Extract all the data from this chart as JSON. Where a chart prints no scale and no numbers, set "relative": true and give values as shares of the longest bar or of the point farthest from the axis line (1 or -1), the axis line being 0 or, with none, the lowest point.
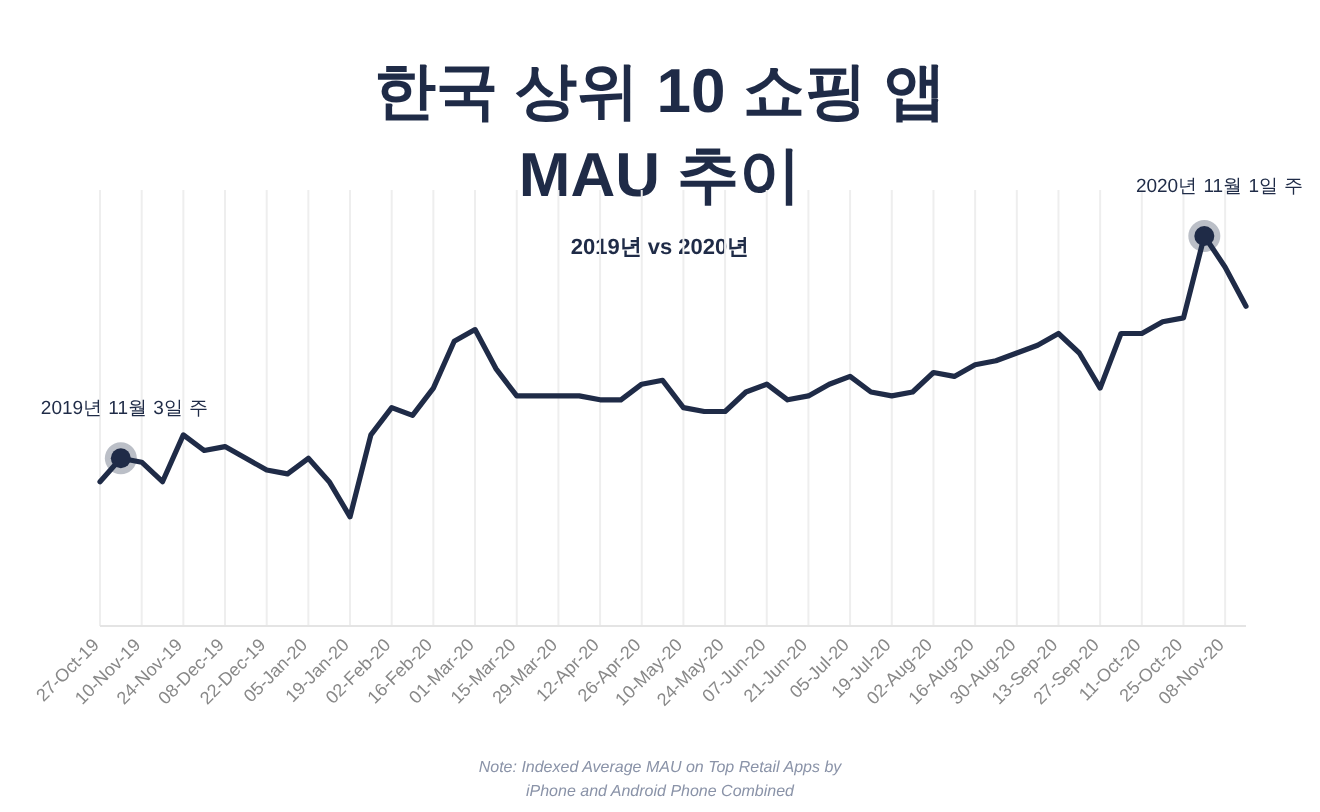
{
  "chart_data": {
    "type": "line",
    "relative": true,
    "title": "한국 상위 10 쇼핑 앱\nMAU 추이",
    "subtitle": "2019년 vs 2020년",
    "grid": "x",
    "marker": "none",
    "line_style": "solid",
    "xlim": [
      "2019-10-27",
      "2020-11-15"
    ],
    "xticks": [
      {
        "value": "2019-10-27",
        "label": "27-Oct-19"
      },
      {
        "value": "2019-11-10",
        "label": "10-Nov-19"
      },
      {
        "value": "2019-11-24",
        "label": "24-Nov-19"
      },
      {
        "value": "2019-12-08",
        "label": "08-Dec-19"
      },
      {
        "value": "2019-12-22",
        "label": "22-Dec-19"
      },
      {
        "value": "2020-01-05",
        "label": "05-Jan-20"
      },
      {
        "value": "2020-01-19",
        "label": "19-Jan-20"
      },
      {
        "value": "2020-02-02",
        "label": "02-Feb-20"
      },
      {
        "value": "2020-02-16",
        "label": "16-Feb-20"
      },
      {
        "value": "2020-03-01",
        "label": "01-Mar-20"
      },
      {
        "value": "2020-03-15",
        "label": "15-Mar-20"
      },
      {
        "value": "2020-03-29",
        "label": "29-Mar-20"
      },
      {
        "value": "2020-04-12",
        "label": "12-Apr-20"
      },
      {
        "value": "2020-04-26",
        "label": "26-Apr-20"
      },
      {
        "value": "2020-05-10",
        "label": "10-May-20"
      },
      {
        "value": "2020-05-24",
        "label": "24-May-20"
      },
      {
        "value": "2020-06-07",
        "label": "07-Jun-20"
      },
      {
        "value": "2020-06-21",
        "label": "21-Jun-20"
      },
      {
        "value": "2020-07-05",
        "label": "05-Jul-20"
      },
      {
        "value": "2020-07-19",
        "label": "19-Jul-20"
      },
      {
        "value": "2020-08-02",
        "label": "02-Aug-20"
      },
      {
        "value": "2020-08-16",
        "label": "16-Aug-20"
      },
      {
        "value": "2020-08-30",
        "label": "30-Aug-20"
      },
      {
        "value": "2020-09-13",
        "label": "13-Sep-20"
      },
      {
        "value": "2020-09-27",
        "label": "27-Sep-20"
      },
      {
        "value": "2020-10-11",
        "label": "11-Oct-20"
      },
      {
        "value": "2020-10-25",
        "label": "25-Oct-20"
      },
      {
        "value": "2020-11-08",
        "label": "08-Nov-20"
      }
    ],
    "x": [
      "2019-10-27",
      "2019-11-03",
      "2019-11-10",
      "2019-11-17",
      "2019-11-24",
      "2019-12-01",
      "2019-12-08",
      "2019-12-15",
      "2019-12-22",
      "2019-12-29",
      "2020-01-05",
      "2020-01-12",
      "2020-01-19",
      "2020-01-26",
      "2020-02-02",
      "2020-02-09",
      "2020-02-16",
      "2020-02-23",
      "2020-03-01",
      "2020-03-08",
      "2020-03-15",
      "2020-03-22",
      "2020-03-29",
      "2020-04-05",
      "2020-04-12",
      "2020-04-19",
      "2020-04-26",
      "2020-05-03",
      "2020-05-10",
      "2020-05-17",
      "2020-05-24",
      "2020-05-31",
      "2020-06-07",
      "2020-06-14",
      "2020-06-21",
      "2020-06-28",
      "2020-07-05",
      "2020-07-12",
      "2020-07-19",
      "2020-07-26",
      "2020-08-02",
      "2020-08-09",
      "2020-08-16",
      "2020-08-23",
      "2020-08-30",
      "2020-09-06",
      "2020-09-13",
      "2020-09-20",
      "2020-09-27",
      "2020-10-04",
      "2020-10-11",
      "2020-10-18",
      "2020-10-25",
      "2020-11-01",
      "2020-11-08",
      "2020-11-15"
    ],
    "series": [
      {
        "color": "#1f2b47",
        "values": [
          0.37,
          0.43,
          0.42,
          0.37,
          0.49,
          0.45,
          0.46,
          0.43,
          0.4,
          0.39,
          0.43,
          0.37,
          0.28,
          0.49,
          0.56,
          0.54,
          0.61,
          0.73,
          0.76,
          0.66,
          0.59,
          0.59,
          0.59,
          0.59,
          0.58,
          0.58,
          0.62,
          0.63,
          0.56,
          0.55,
          0.55,
          0.6,
          0.62,
          0.58,
          0.59,
          0.62,
          0.64,
          0.6,
          0.59,
          0.6,
          0.65,
          0.64,
          0.67,
          0.68,
          0.7,
          0.72,
          0.75,
          0.7,
          0.61,
          0.75,
          0.75,
          0.78,
          0.79,
          1,
          0.92,
          0.82
        ]
      }
    ],
    "annotations": [
      {
        "text": "2019년 11월 3일 주",
        "x": "2019-11-03",
        "y": 0.43
      },
      {
        "text": "2020년 11월 1일 주",
        "x": "2020-11-01",
        "y": 1
      },
      "Note: Indexed Average MAU on Top Retail Apps by\niPhone and Android Phone Combined"
    ]
  }
}
